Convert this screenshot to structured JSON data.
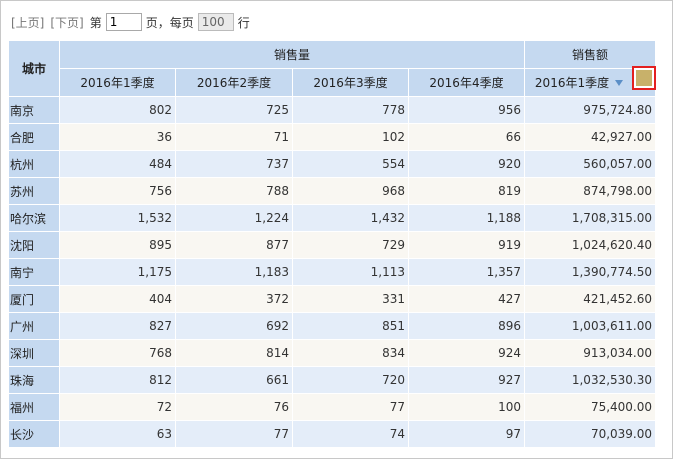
{
  "pager": {
    "prev_label": "[上页]",
    "next_label": "[下页]",
    "page_prefix": "第",
    "page_value": "1",
    "page_suffix": "页，每页",
    "page_size_value": "100",
    "rows_suffix": "行"
  },
  "table": {
    "city_header": "城市",
    "group_headers": {
      "sales_volume": "销售量",
      "sales_amount": "销售额"
    },
    "quarter_headers": [
      "2016年1季度",
      "2016年2季度",
      "2016年3季度",
      "2016年4季度"
    ],
    "amount_header": "2016年1季度",
    "rows": [
      {
        "city": "南京",
        "q1": "802",
        "q2": "725",
        "q3": "778",
        "q4": "956",
        "amount": "975,724.80"
      },
      {
        "city": "合肥",
        "q1": "36",
        "q2": "71",
        "q3": "102",
        "q4": "66",
        "amount": "42,927.00"
      },
      {
        "city": "杭州",
        "q1": "484",
        "q2": "737",
        "q3": "554",
        "q4": "920",
        "amount": "560,057.00"
      },
      {
        "city": "苏州",
        "q1": "756",
        "q2": "788",
        "q3": "968",
        "q4": "819",
        "amount": "874,798.00"
      },
      {
        "city": "哈尔滨",
        "q1": "1,532",
        "q2": "1,224",
        "q3": "1,432",
        "q4": "1,188",
        "amount": "1,708,315.00"
      },
      {
        "city": "沈阳",
        "q1": "895",
        "q2": "877",
        "q3": "729",
        "q4": "919",
        "amount": "1,024,620.40"
      },
      {
        "city": "南宁",
        "q1": "1,175",
        "q2": "1,183",
        "q3": "1,113",
        "q4": "1,357",
        "amount": "1,390,774.50"
      },
      {
        "city": "厦门",
        "q1": "404",
        "q2": "372",
        "q3": "331",
        "q4": "427",
        "amount": "421,452.60"
      },
      {
        "city": "广州",
        "q1": "827",
        "q2": "692",
        "q3": "851",
        "q4": "896",
        "amount": "1,003,611.00"
      },
      {
        "city": "深圳",
        "q1": "768",
        "q2": "814",
        "q3": "834",
        "q4": "924",
        "amount": "913,034.00"
      },
      {
        "city": "珠海",
        "q1": "812",
        "q2": "661",
        "q3": "720",
        "q4": "927",
        "amount": "1,032,530.30"
      },
      {
        "city": "福州",
        "q1": "72",
        "q2": "76",
        "q3": "77",
        "q4": "100",
        "amount": "75,400.00"
      },
      {
        "city": "长沙",
        "q1": "63",
        "q2": "77",
        "q3": "74",
        "q4": "97",
        "amount": "70,039.00"
      }
    ]
  },
  "colors": {
    "header_bg": "#c5d9f0",
    "row_odd_bg": "#e4edf9",
    "row_even_bg": "#f9f7f2",
    "highlight_border": "#e32020",
    "handle_fill": "#c8b16a",
    "sort_arrow": "#5b8fc7"
  },
  "icons": {
    "sort": "sort-desc-icon",
    "handle": "column-resize-handle"
  }
}
